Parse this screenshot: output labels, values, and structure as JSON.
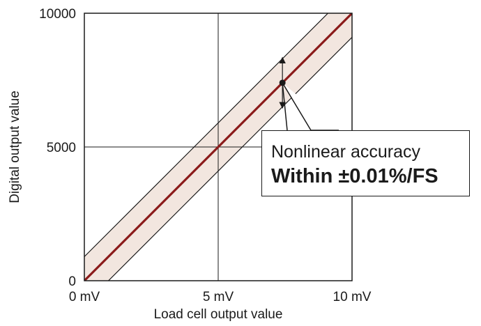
{
  "chart_data": {
    "type": "line",
    "title": "",
    "xlabel": "Load cell output value",
    "ylabel": "Digital output value",
    "xlim": [
      0,
      10
    ],
    "ylim": [
      0,
      10000
    ],
    "x_ticks": [
      {
        "value": 0,
        "label": "0 mV"
      },
      {
        "value": 5,
        "label": "5 mV"
      },
      {
        "value": 10,
        "label": "10 mV"
      }
    ],
    "y_ticks": [
      {
        "value": 0,
        "label": "0"
      },
      {
        "value": 5000,
        "label": "5000"
      },
      {
        "value": 10000,
        "label": "10000"
      }
    ],
    "grid": true,
    "series": [
      {
        "x": [
          0,
          10
        ],
        "y": [
          0,
          10000
        ],
        "color": "#8b1a1a"
      }
    ],
    "band": {
      "half_width": 900,
      "fill": "#f2e6df",
      "edge": "#1a1a1a"
    },
    "marker": {
      "x": 7.4,
      "y": 7400
    },
    "error_arrow": {
      "x": 7.4,
      "y_low": 6450,
      "y_high": 8350
    },
    "annotation": {
      "line1": "Nonlinear accuracy",
      "line2": "Within ±0.01%/FS",
      "points_to": {
        "x": 7.4,
        "y": 7400
      }
    }
  }
}
